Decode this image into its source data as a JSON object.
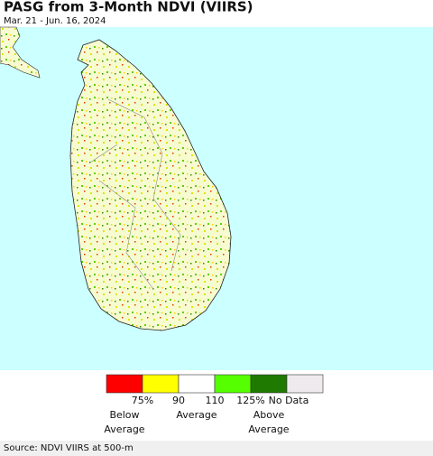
{
  "header": {
    "title": "PASG from 3-Month NDVI (VIIRS)",
    "subtitle": "Mar. 21 - Jun. 16, 2024"
  },
  "legend": {
    "colors": [
      "#ff0000",
      "#ffff00",
      "#ffffff",
      "#55ff00",
      "#1e7a00",
      "#eeeaee"
    ],
    "labels": [
      "75%",
      "90",
      "110",
      "125%",
      "No Data"
    ],
    "captions": [
      [
        "Below",
        "Average"
      ],
      [
        "Average"
      ],
      [
        "Above",
        "Average"
      ]
    ]
  },
  "footer": {
    "source": "Source: NDVI VIIRS at 500-m"
  }
}
